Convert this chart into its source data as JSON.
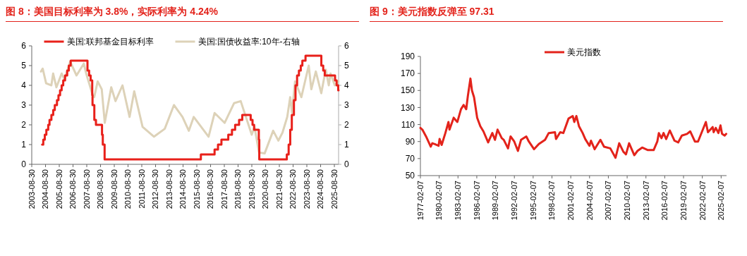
{
  "chart_data": [
    {
      "type": "line",
      "title": "图 8：美国目标利率为 3.8%，实际利率为 4.24%",
      "xlim": [
        "2003-08-30",
        "2025-12-20"
      ],
      "xticks": [
        "2003-08-30",
        "2004-08-30",
        "2005-08-30",
        "2006-08-30",
        "2007-08-30",
        "2008-08-30",
        "2009-08-30",
        "2010-08-30",
        "2011-08-30",
        "2012-08-30",
        "2013-08-30",
        "2014-08-30",
        "2015-08-30",
        "2016-08-30",
        "2017-08-30",
        "2018-08-30",
        "2019-08-30",
        "2020-08-30",
        "2021-08-30",
        "2022-08-30",
        "2023-08-30",
        "2024-08-30",
        "2025-08-30"
      ],
      "ylim": [
        0,
        6
      ],
      "yticks": [
        0,
        1,
        2,
        3,
        4,
        5,
        6
      ],
      "y2lim": [
        0,
        6
      ],
      "y2ticks": [
        0,
        1,
        2,
        3,
        4,
        5,
        6
      ],
      "legend": "top",
      "grid": false,
      "series": [
        {
          "name": "美国:联邦基金目标利率",
          "type": "step",
          "color": "#e8201a",
          "x": [
            "2004-06-01",
            "2004-07-01",
            "2004-08-10",
            "2004-09-21",
            "2004-11-10",
            "2004-12-14",
            "2005-02-02",
            "2005-03-22",
            "2005-05-03",
            "2005-06-30",
            "2005-08-09",
            "2005-09-20",
            "2005-11-01",
            "2005-12-13",
            "2006-01-31",
            "2006-03-28",
            "2006-05-10",
            "2006-06-29",
            "2007-09-18",
            "2007-10-31",
            "2007-12-11",
            "2008-01-22",
            "2008-01-30",
            "2008-03-18",
            "2008-04-30",
            "2008-10-08",
            "2008-10-29",
            "2008-12-16",
            "2015-12-16",
            "2016-12-14",
            "2017-03-15",
            "2017-06-14",
            "2017-12-13",
            "2018-03-21",
            "2018-06-13",
            "2018-09-26",
            "2018-12-19",
            "2019-07-31",
            "2019-09-18",
            "2019-10-30",
            "2020-03-03",
            "2020-03-15",
            "2022-03-16",
            "2022-05-04",
            "2022-06-15",
            "2022-07-27",
            "2022-09-21",
            "2022-11-02",
            "2022-12-14",
            "2023-02-01",
            "2023-03-22",
            "2023-05-03",
            "2023-07-26",
            "2024-09-18",
            "2024-11-07",
            "2024-12-18",
            "2025-09-17",
            "2025-10-29",
            "2025-12-10",
            "2025-12-20"
          ],
          "values": [
            1,
            1.25,
            1.5,
            1.75,
            2,
            2.25,
            2.5,
            2.75,
            3,
            3.25,
            3.5,
            3.75,
            4,
            4.25,
            4.5,
            4.75,
            5,
            5.25,
            4.75,
            4.5,
            4.25,
            3.5,
            3,
            2.25,
            2,
            1.5,
            1,
            0.25,
            0.5,
            0.75,
            1,
            1.25,
            1.5,
            1.75,
            2,
            2.25,
            2.5,
            2.25,
            2,
            1.75,
            1.25,
            0.25,
            0.5,
            1,
            1.75,
            2.5,
            3.25,
            4,
            4.5,
            4.75,
            5,
            5.25,
            5.5,
            5,
            4.75,
            4.5,
            4.25,
            4,
            3.75,
            3.75
          ]
        },
        {
          "name": "美国:国债收益率:10年-右轴",
          "axis": "y2",
          "color": "#ddd2b8",
          "x": [
            "2004-05-01",
            "2004-06-15",
            "2004-09-15",
            "2005-02-01",
            "2005-03-20",
            "2005-06-15",
            "2005-11-01",
            "2006-01-15",
            "2006-06-15",
            "2006-12-01",
            "2007-06-12",
            "2007-08-15",
            "2008-01-20",
            "2008-03-15",
            "2008-06-15",
            "2008-10-01",
            "2008-12-20",
            "2009-06-10",
            "2009-10-01",
            "2010-04-05",
            "2010-10-10",
            "2011-02-10",
            "2011-09-20",
            "2012-07-20",
            "2013-05-01",
            "2013-12-31",
            "2014-08-15",
            "2015-01-30",
            "2015-06-10",
            "2016-07-08",
            "2016-12-15",
            "2017-09-08",
            "2018-05-17",
            "2018-11-08",
            "2019-08-28",
            "2019-11-08",
            "2020-03-09",
            "2020-08-04",
            "2021-03-19",
            "2021-08-04",
            "2021-11-20",
            "2022-03-28",
            "2022-06-14",
            "2022-08-01",
            "2022-10-21",
            "2023-04-06",
            "2023-10-19",
            "2023-12-27",
            "2024-04-25",
            "2024-09-16",
            "2025-01-13",
            "2025-04-04",
            "2025-05-21",
            "2025-09-10",
            "2025-12-15"
          ],
          "values": [
            4.7,
            4.85,
            4.1,
            4,
            4.6,
            3.9,
            4.6,
            4.3,
            5.2,
            4.5,
            5.1,
            4.6,
            3.6,
            3.4,
            4.2,
            3.8,
            2.1,
            3.9,
            3.2,
            4,
            2.4,
            3.7,
            1.9,
            1.4,
            1.8,
            3,
            2.4,
            1.7,
            2.4,
            1.4,
            2.6,
            2.1,
            3.1,
            3.2,
            1.5,
            1.9,
            0.6,
            0.55,
            1.7,
            1.2,
            1.6,
            2.4,
            3.4,
            2.6,
            4.2,
            3.4,
            5,
            3.8,
            4.7,
            3.6,
            4.8,
            4,
            4.6,
            4,
            4.2
          ]
        }
      ]
    },
    {
      "type": "line",
      "title": "图 9：美元指数反弹至 97.31",
      "xlim": [
        "1977-02-07",
        "2025-12-20"
      ],
      "xticks": [
        "1977-02-07",
        "1980-02-07",
        "1983-02-07",
        "1986-02-07",
        "1989-02-07",
        "1992-02-07",
        "1995-02-07",
        "1998-02-07",
        "2001-02-07",
        "2004-02-07",
        "2007-02-07",
        "2010-02-07",
        "2013-02-07",
        "2016-02-07",
        "2019-02-07",
        "2022-02-07",
        "2025-02-07"
      ],
      "ylim": [
        50,
        190
      ],
      "yticks": [
        50,
        70,
        90,
        110,
        130,
        150,
        170,
        190
      ],
      "legend": "top",
      "grid": false,
      "series": [
        {
          "name": "美元指数",
          "color": "#e3231b",
          "x": [
            "1977-02-07",
            "1977-06",
            "1978-01",
            "1978-10",
            "1979-01",
            "1979-06",
            "1980-01",
            "1980-03",
            "1980-07",
            "1981-02",
            "1981-08",
            "1981-10",
            "1982-06",
            "1983-01",
            "1983-08",
            "1984-01",
            "1984-06",
            "1984-09",
            "1985-02",
            "1985-05",
            "1985-09",
            "1986-03",
            "1986-09",
            "1987-03",
            "1987-12",
            "1988-08",
            "1989-01",
            "1989-06",
            "1990-02",
            "1990-06",
            "1991-02",
            "1991-07",
            "1992-02",
            "1992-09",
            "1993-03",
            "1994-01",
            "1994-06",
            "1995-04",
            "1996-01",
            "1997-01",
            "1997-08",
            "1998-08",
            "1998-10",
            "1999-06",
            "1999-12",
            "2000-10",
            "2001-06",
            "2001-09",
            "2002-01",
            "2002-06",
            "2003-01",
            "2003-06",
            "2004-02",
            "2004-05",
            "2004-12",
            "2005-11",
            "2006-06",
            "2007-06",
            "2008-04",
            "2008-11",
            "2009-07",
            "2009-12",
            "2010-06",
            "2011-04",
            "2011-10",
            "2012-07",
            "2013-06",
            "2014-05",
            "2014-12",
            "2015-03",
            "2015-08",
            "2015-12",
            "2016-05",
            "2016-12",
            "2017-09",
            "2018-04",
            "2018-11",
            "2019-09",
            "2020-03",
            "2020-12",
            "2021-06",
            "2022-09",
            "2023-01",
            "2023-10",
            "2023-12",
            "2024-04",
            "2024-09",
            "2025-01",
            "2025-04",
            "2025-09",
            "2025-12"
          ],
          "values": [
            106,
            104,
            96,
            84,
            88,
            87,
            85,
            93,
            86,
            100,
            113,
            104,
            118,
            113,
            128,
            133,
            128,
            143,
            164,
            150,
            142,
            118,
            108,
            102,
            89,
            100,
            92,
            104,
            94,
            92,
            82,
            96,
            90,
            79,
            92,
            96,
            90,
            81,
            87,
            92,
            100,
            101,
            93,
            101,
            100,
            117,
            120,
            113,
            120,
            108,
            100,
            93,
            85,
            91,
            81,
            92,
            84,
            82,
            71,
            88,
            78,
            75,
            88,
            74,
            79,
            83,
            80,
            80,
            90,
            100,
            94,
            100,
            93,
            103,
            91,
            89,
            97,
            99,
            102,
            90,
            90,
            113,
            101,
            107,
            101,
            106,
            100,
            109,
            99,
            97,
            99
          ]
        }
      ]
    }
  ]
}
